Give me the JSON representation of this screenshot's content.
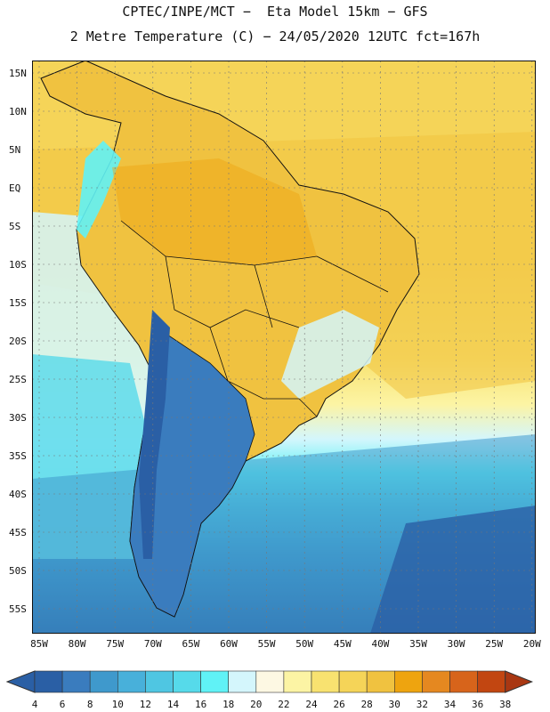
{
  "title": {
    "line1": "CPTEC/INPE/MCT −  Eta Model 15km − GFS",
    "line2": "2 Metre Temperature (C) − 24/05/2020 12UTC fct=167h"
  },
  "lon_labels": [
    "85W",
    "80W",
    "75W",
    "70W",
    "65W",
    "60W",
    "55W",
    "50W",
    "45W",
    "40W",
    "35W",
    "30W",
    "25W",
    "20W"
  ],
  "lat_labels": [
    "15N",
    "10N",
    "5N",
    "EQ",
    "5S",
    "10S",
    "15S",
    "20S",
    "25S",
    "30S",
    "35S",
    "40S",
    "45S",
    "50S",
    "55S"
  ],
  "colorbar": {
    "labels": [
      "4",
      "6",
      "8",
      "10",
      "12",
      "14",
      "16",
      "18",
      "20",
      "22",
      "24",
      "26",
      "28",
      "30",
      "32",
      "34",
      "36",
      "38"
    ],
    "colors": [
      "#2a5fa5",
      "#3a7cbe",
      "#3f99cc",
      "#48b0da",
      "#4fc6e2",
      "#56daea",
      "#60f2f6",
      "#d4f6fc",
      "#fdf8e3",
      "#fcf4a4",
      "#f8e270",
      "#f5d458",
      "#f0c240",
      "#eea40f",
      "#e58820",
      "#d7641b",
      "#c24611",
      "#a93712"
    ]
  },
  "palette": {
    "ocean_north": "#f5d458",
    "ocean_equator_east": "#f0c240",
    "land_interior": "#f0c240",
    "southern_ocean": "#3a7cbe",
    "andes": "#2a5fa5"
  }
}
